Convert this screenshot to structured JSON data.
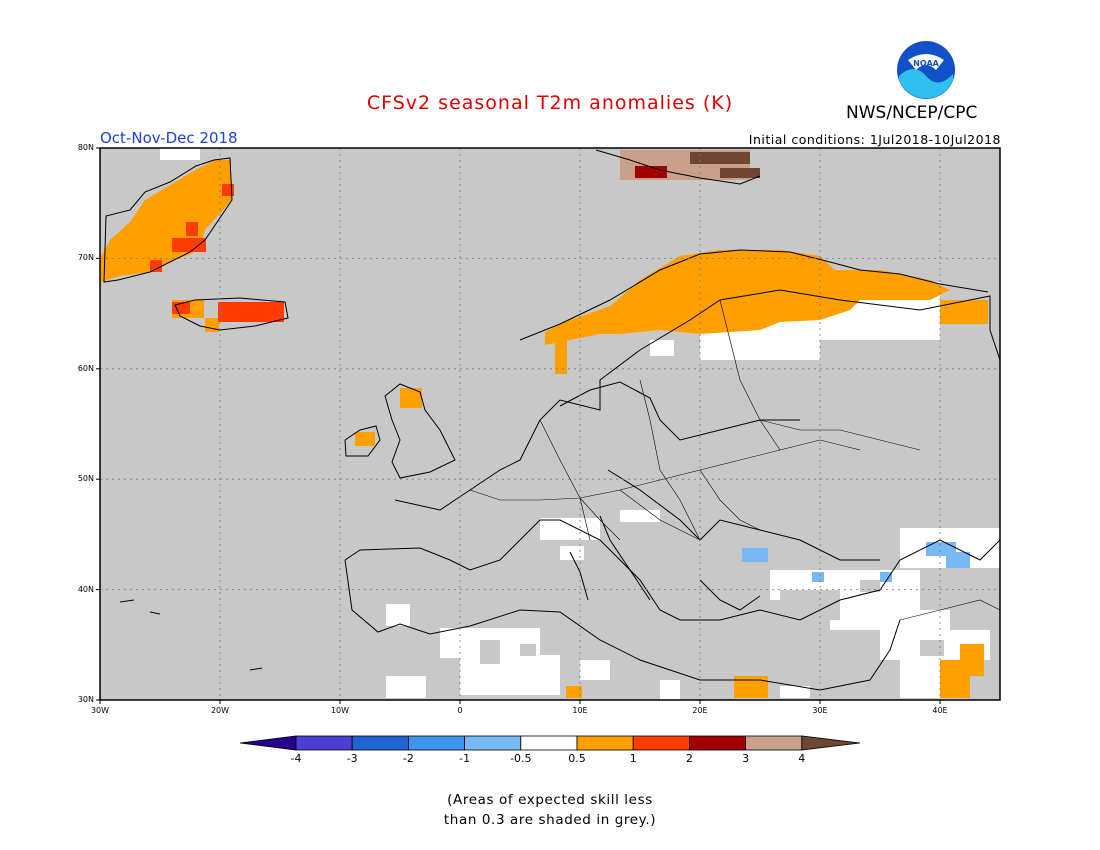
{
  "title": "CFSv2 seasonal T2m anomalies (K)",
  "period": "Oct-Nov-Dec 2018",
  "initial_conditions": "Initial conditions: 1Jul2018-10Jul2018",
  "agency": "NWS/NCEP/CPC",
  "logo_text": "NOAA",
  "note_line1": "(Areas of expected skill less",
  "note_line2": "than 0.3 are shaded in grey.)",
  "map": {
    "lon_range": [
      -30,
      45
    ],
    "lat_range": [
      30,
      80
    ],
    "lat_ticks": [
      "30N",
      "40N",
      "50N",
      "60N",
      "70N",
      "80N"
    ],
    "lon_ticks": [
      "30W",
      "20W",
      "10W",
      "0",
      "10E",
      "20E",
      "30E",
      "40E"
    ],
    "grid": "dotted",
    "background_color": "#c8c8c8"
  },
  "colorbar": {
    "colors": [
      "#24008c",
      "#4a3fd2",
      "#1e64d2",
      "#3c96f0",
      "#78b9f5",
      "#ffffff",
      "#ffa000",
      "#ff3c00",
      "#a00000",
      "#c8a08c",
      "#6e4632"
    ],
    "labels": [
      "-4",
      "-3",
      "-2",
      "-1",
      "-0.5",
      "0.5",
      "1",
      "2",
      "3",
      "4"
    ]
  }
}
